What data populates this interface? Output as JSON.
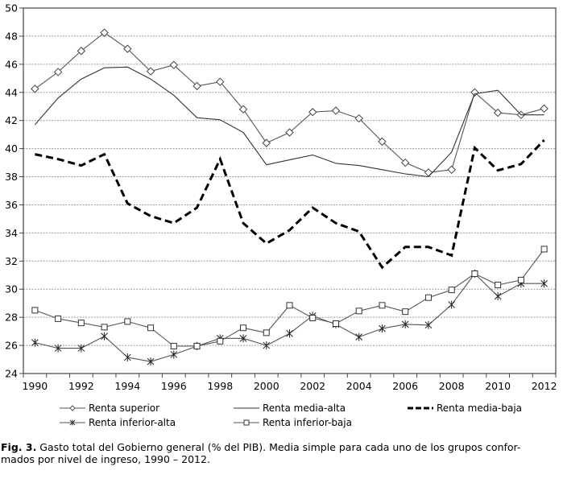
{
  "chart_data": {
    "type": "line",
    "title": "",
    "xlabel": "",
    "ylabel": "",
    "ylim": [
      24,
      50
    ],
    "yticks": [
      24,
      26,
      28,
      30,
      32,
      34,
      36,
      38,
      40,
      42,
      44,
      46,
      48,
      50
    ],
    "x": [
      1990,
      1991,
      1992,
      1993,
      1994,
      1995,
      1996,
      1997,
      1998,
      1999,
      2000,
      2001,
      2002,
      2003,
      2004,
      2005,
      2006,
      2007,
      2008,
      2009,
      2010,
      2011,
      2012
    ],
    "xtick_labels": [
      "1990",
      "1992",
      "1994",
      "1996",
      "1998",
      "2000",
      "2002",
      "2004",
      "2006",
      "2008",
      "2010",
      "2012"
    ],
    "grid": "horizontal-dashed",
    "legend_position": "bottom",
    "series": [
      {
        "name": "Renta superior",
        "style": "line-diamond",
        "color": "#555555",
        "values": [
          44.25,
          45.45,
          46.95,
          48.25,
          47.1,
          45.5,
          45.95,
          44.45,
          44.75,
          42.8,
          40.4,
          41.15,
          42.6,
          42.7,
          42.15,
          40.5,
          39.0,
          38.3,
          38.5,
          44.0,
          42.55,
          42.4,
          42.85
        ]
      },
      {
        "name": "Renta media-alta",
        "style": "line",
        "color": "#333333",
        "values": [
          41.7,
          43.6,
          44.95,
          45.75,
          45.8,
          44.95,
          43.8,
          42.2,
          42.05,
          41.15,
          38.85,
          39.2,
          39.55,
          38.95,
          38.8,
          38.5,
          38.2,
          38.0,
          39.75,
          43.9,
          44.15,
          42.4,
          42.4
        ]
      },
      {
        "name": "Renta media-baja",
        "style": "dashed-bold",
        "color": "#000000",
        "values": [
          39.6,
          39.25,
          38.8,
          39.6,
          36.1,
          35.2,
          34.7,
          35.8,
          39.25,
          34.7,
          33.25,
          34.2,
          35.8,
          34.7,
          34.1,
          31.55,
          33.0,
          33.0,
          32.4,
          40.05,
          38.45,
          38.9,
          40.6
        ]
      },
      {
        "name": "Renta inferior-alta",
        "style": "line-star",
        "color": "#555555",
        "values": [
          26.2,
          25.8,
          25.8,
          26.65,
          25.15,
          24.85,
          25.35,
          25.95,
          26.5,
          26.5,
          26.0,
          26.85,
          28.1,
          27.5,
          26.6,
          27.2,
          27.5,
          27.45,
          28.9,
          31.1,
          29.5,
          30.4,
          30.4
        ]
      },
      {
        "name": "Renta inferior-baja",
        "style": "line-square",
        "color": "#555555",
        "values": [
          28.5,
          27.9,
          27.6,
          27.3,
          27.7,
          27.25,
          25.95,
          25.95,
          26.3,
          27.25,
          26.9,
          28.85,
          27.95,
          27.55,
          28.45,
          28.85,
          28.4,
          29.4,
          29.95,
          31.1,
          30.3,
          30.65,
          32.85
        ]
      }
    ]
  },
  "caption": {
    "label": "Fig. 3.",
    "line1": " Gasto total del Gobierno general (% del PIB). Media simple para cada uno de los grupos confor-",
    "line2": "mados por nivel de ingreso, 1990 – 2012."
  }
}
